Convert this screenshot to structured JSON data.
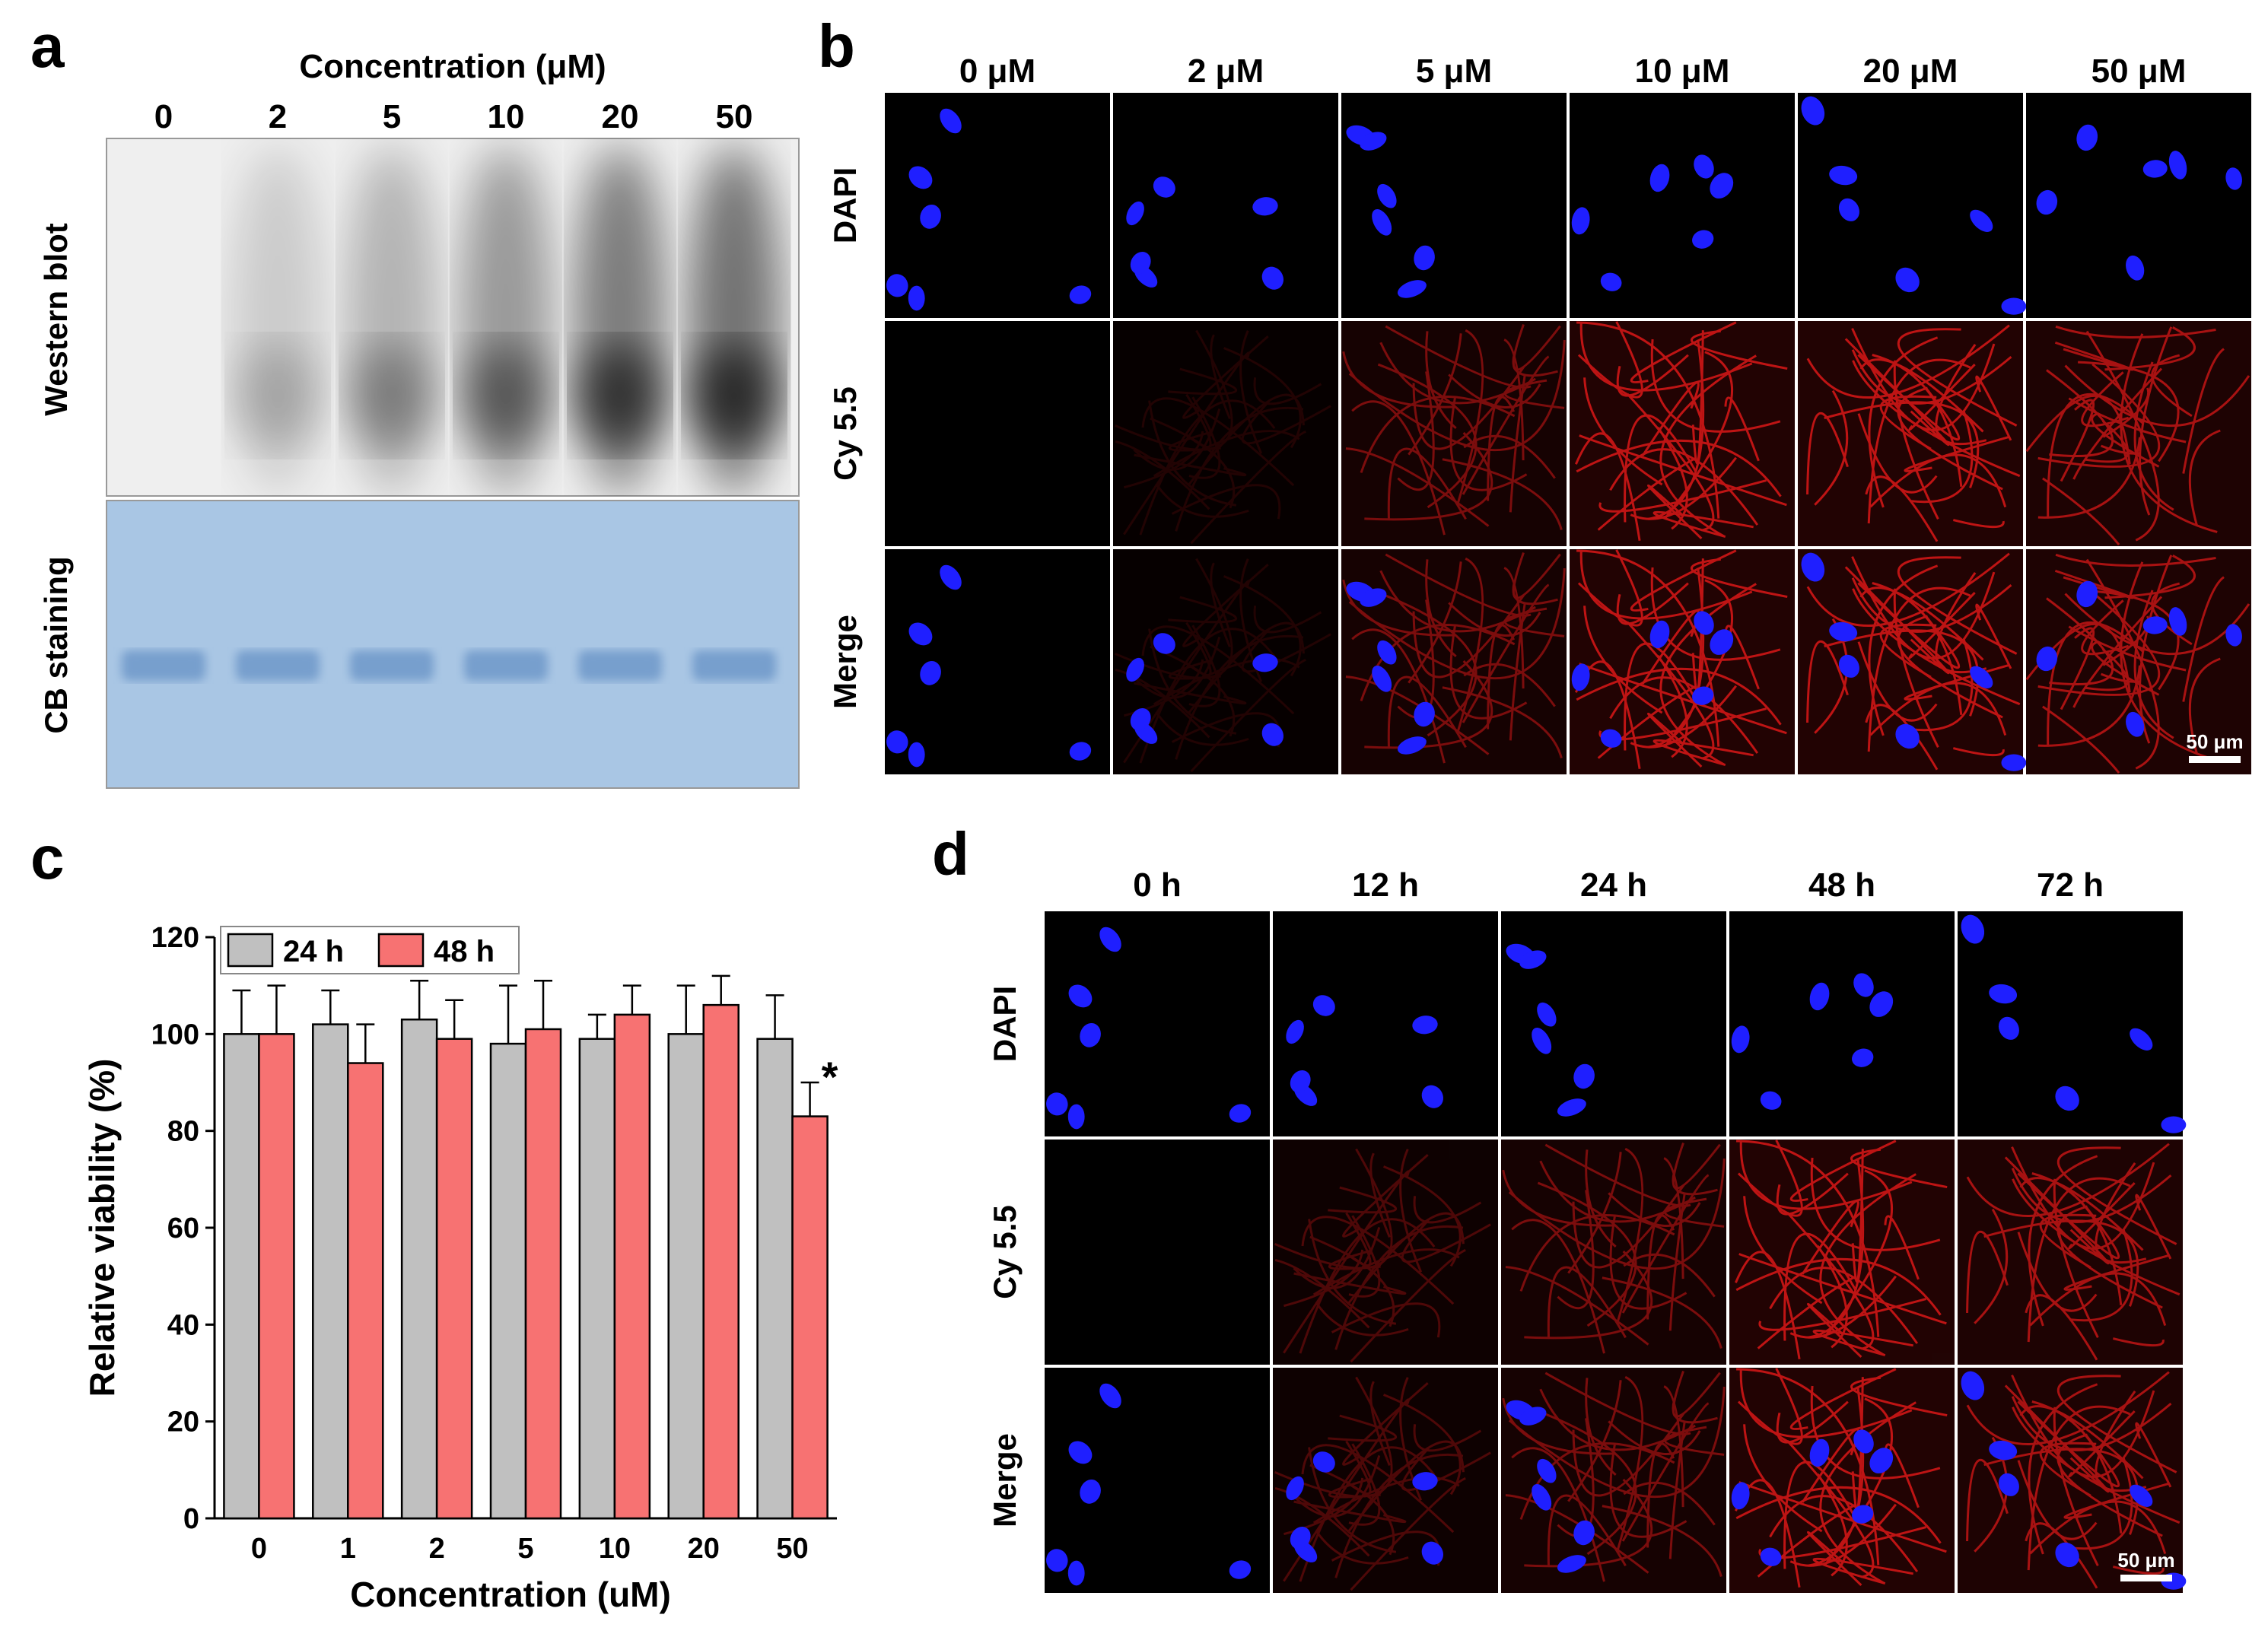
{
  "panels": {
    "a": {
      "letter": "a",
      "title": "Concentration (μM)",
      "lanes": [
        "0",
        "2",
        "5",
        "10",
        "20",
        "50"
      ],
      "blot_intensity": [
        0.02,
        0.28,
        0.45,
        0.65,
        0.88,
        0.95
      ],
      "row_labels": {
        "blot": "Western blot",
        "gel": "CB staining"
      },
      "colors": {
        "gel": "#a9c6e4",
        "gel_band": "#6f98c9"
      }
    },
    "b": {
      "letter": "b",
      "columns": [
        "0 μM",
        "2 μM",
        "5 μM",
        "10 μM",
        "20 μM",
        "50 μM"
      ],
      "rows": [
        "DAPI",
        "Cy 5.5",
        "Merge"
      ],
      "cy55_intensity": [
        0.0,
        0.15,
        0.55,
        0.85,
        0.85,
        0.75
      ],
      "scale_bar": "50 μm",
      "colors": {
        "nucleus": "#1f1fff",
        "actin": "#e01818"
      }
    },
    "c": {
      "letter": "c",
      "chart_data": {
        "type": "bar",
        "categories": [
          "0",
          "1",
          "2",
          "5",
          "10",
          "20",
          "50"
        ],
        "series": [
          {
            "name": "24 h",
            "color": "#c0c0c0",
            "values": [
              100,
              102,
              103,
              98,
              99,
              100,
              99
            ],
            "errors": [
              9,
              7,
              8,
              12,
              5,
              10,
              9
            ]
          },
          {
            "name": "48 h",
            "color": "#f77272",
            "values": [
              100,
              94,
              99,
              101,
              104,
              106,
              83
            ],
            "errors": [
              10,
              8,
              8,
              10,
              6,
              6,
              7
            ]
          }
        ],
        "xlabel": "Concentration (uM)",
        "ylabel": "Relative viability (%)",
        "ylim": [
          0,
          120
        ],
        "yticks": [
          "0",
          "20",
          "40",
          "60",
          "80",
          "100",
          "120"
        ],
        "annotations": [
          {
            "text": "*",
            "category": "50"
          }
        ],
        "legend": "top-left"
      }
    },
    "d": {
      "letter": "d",
      "columns": [
        "0 h",
        "12 h",
        "24 h",
        "48 h",
        "72 h"
      ],
      "rows": [
        "DAPI",
        "Cy 5.5",
        "Merge"
      ],
      "cy55_intensity": [
        0.0,
        0.35,
        0.55,
        0.85,
        0.75
      ],
      "scale_bar": "50 μm",
      "colors": {
        "nucleus": "#1f1fff",
        "actin": "#e01818"
      }
    }
  }
}
